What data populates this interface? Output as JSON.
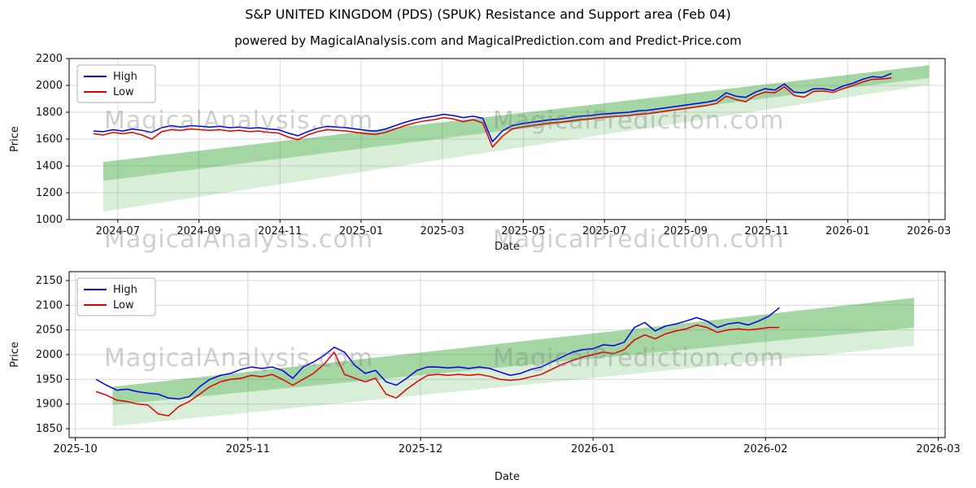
{
  "header": {
    "title": "S&P UNITED KINGDOM (PDS) (SPUK) Resistance and Support area (Feb 04)",
    "subtitle": "powered by MagicalAnalysis.com and MagicalPrediction.com and Predict-Price.com"
  },
  "watermarks": {
    "left": "MagicalAnalysis.com",
    "right": "MagicalPrediction.com"
  },
  "colors": {
    "high": "#0000dd",
    "low": "#dd0000",
    "band": "#2ca02c",
    "grid": "#d9d9d9",
    "axis": "#000000"
  },
  "chart_data": [
    {
      "type": "line",
      "title": "",
      "xlabel": "Date",
      "ylabel": "Price",
      "xlim": [
        2024.4,
        2026.2
      ],
      "ylim": [
        1000,
        2200
      ],
      "grid": true,
      "legend_position": "upper-left",
      "xticks": [
        {
          "v": 2024.5,
          "label": "2024-07"
        },
        {
          "v": 2024.6667,
          "label": "2024-09"
        },
        {
          "v": 2024.8333,
          "label": "2024-11"
        },
        {
          "v": 2025.0,
          "label": "2025-01"
        },
        {
          "v": 2025.1667,
          "label": "2025-03"
        },
        {
          "v": 2025.3333,
          "label": "2025-05"
        },
        {
          "v": 2025.5,
          "label": "2025-07"
        },
        {
          "v": 2025.6667,
          "label": "2025-09"
        },
        {
          "v": 2025.8333,
          "label": "2025-11"
        },
        {
          "v": 2026.0,
          "label": "2026-01"
        },
        {
          "v": 2026.1667,
          "label": "2026-03"
        }
      ],
      "yticks": [
        1000,
        1200,
        1400,
        1600,
        1800,
        2000,
        2200
      ],
      "x": [
        2024.45,
        2024.47,
        2024.49,
        2024.51,
        2024.53,
        2024.55,
        2024.57,
        2024.59,
        2024.61,
        2024.63,
        2024.65,
        2024.67,
        2024.69,
        2024.71,
        2024.73,
        2024.75,
        2024.77,
        2024.79,
        2024.81,
        2024.83,
        2024.85,
        2024.87,
        2024.89,
        2024.91,
        2024.93,
        2024.95,
        2024.97,
        2024.99,
        2025.01,
        2025.03,
        2025.05,
        2025.07,
        2025.09,
        2025.11,
        2025.13,
        2025.15,
        2025.17,
        2025.19,
        2025.21,
        2025.23,
        2025.25,
        2025.27,
        2025.29,
        2025.31,
        2025.33,
        2025.35,
        2025.37,
        2025.39,
        2025.41,
        2025.43,
        2025.45,
        2025.47,
        2025.49,
        2025.51,
        2025.53,
        2025.55,
        2025.57,
        2025.59,
        2025.61,
        2025.63,
        2025.65,
        2025.67,
        2025.69,
        2025.71,
        2025.73,
        2025.75,
        2025.77,
        2025.79,
        2025.81,
        2025.83,
        2025.85,
        2025.87,
        2025.89,
        2025.91,
        2025.93,
        2025.95,
        2025.97,
        2025.99,
        2026.01,
        2026.03,
        2026.05,
        2026.07,
        2026.09
      ],
      "series": [
        {
          "name": "High",
          "color": "#0000dd",
          "values": [
            1660,
            1655,
            1670,
            1660,
            1675,
            1665,
            1650,
            1685,
            1700,
            1690,
            1700,
            1695,
            1690,
            1695,
            1685,
            1690,
            1680,
            1685,
            1675,
            1670,
            1645,
            1625,
            1655,
            1680,
            1695,
            1690,
            1685,
            1675,
            1665,
            1660,
            1675,
            1700,
            1725,
            1745,
            1760,
            1770,
            1785,
            1775,
            1760,
            1770,
            1755,
            1580,
            1660,
            1700,
            1715,
            1725,
            1735,
            1745,
            1750,
            1760,
            1770,
            1775,
            1785,
            1790,
            1795,
            1800,
            1810,
            1815,
            1825,
            1835,
            1845,
            1855,
            1865,
            1875,
            1890,
            1945,
            1920,
            1910,
            1950,
            1975,
            1965,
            2010,
            1950,
            1945,
            1975,
            1975,
            1962,
            1995,
            2015,
            2045,
            2065,
            2060,
            2090
          ]
        },
        {
          "name": "Low",
          "color": "#dd0000",
          "values": [
            1640,
            1630,
            1650,
            1640,
            1650,
            1630,
            1600,
            1655,
            1670,
            1665,
            1675,
            1670,
            1665,
            1670,
            1660,
            1665,
            1655,
            1660,
            1650,
            1645,
            1615,
            1595,
            1630,
            1655,
            1670,
            1665,
            1660,
            1650,
            1640,
            1635,
            1650,
            1675,
            1700,
            1720,
            1735,
            1745,
            1760,
            1750,
            1730,
            1745,
            1720,
            1540,
            1620,
            1675,
            1690,
            1700,
            1710,
            1720,
            1725,
            1735,
            1745,
            1750,
            1760,
            1765,
            1770,
            1775,
            1785,
            1790,
            1800,
            1810,
            1820,
            1830,
            1840,
            1850,
            1865,
            1920,
            1895,
            1878,
            1925,
            1950,
            1945,
            1990,
            1925,
            1912,
            1955,
            1958,
            1948,
            1975,
            1998,
            2025,
            2045,
            2048,
            2055
          ]
        }
      ],
      "bands": [
        {
          "name": "support-area-outer",
          "opacity": 0.18,
          "points": [
            [
              2024.47,
              1060
            ],
            [
              2026.167,
              2005
            ],
            [
              2026.167,
              2150
            ],
            [
              2024.47,
              1430
            ]
          ]
        },
        {
          "name": "resistance-area-inner",
          "opacity": 0.3,
          "points": [
            [
              2024.47,
              1290
            ],
            [
              2026.167,
              2055
            ],
            [
              2026.167,
              2150
            ],
            [
              2024.47,
              1430
            ]
          ]
        }
      ]
    },
    {
      "type": "line",
      "title": "",
      "xlabel": "Date",
      "ylabel": "Price",
      "xlim": [
        2025.747,
        2026.17
      ],
      "ylim": [
        1832,
        2168
      ],
      "grid": true,
      "legend_position": "upper-left",
      "xticks": [
        {
          "v": 2025.75,
          "label": "2025-10"
        },
        {
          "v": 2025.8333,
          "label": "2025-11"
        },
        {
          "v": 2025.9167,
          "label": "2025-12"
        },
        {
          "v": 2026.0,
          "label": "2026-01"
        },
        {
          "v": 2026.0833,
          "label": "2026-02"
        },
        {
          "v": 2026.1667,
          "label": "2026-03"
        }
      ],
      "yticks": [
        1850,
        1900,
        1950,
        2000,
        2050,
        2100,
        2150
      ],
      "x": [
        2025.76,
        2025.765,
        2025.77,
        2025.775,
        2025.78,
        2025.785,
        2025.79,
        2025.795,
        2025.8,
        2025.805,
        2025.81,
        2025.815,
        2025.82,
        2025.825,
        2025.83,
        2025.835,
        2025.84,
        2025.845,
        2025.85,
        2025.855,
        2025.86,
        2025.865,
        2025.87,
        2025.875,
        2025.88,
        2025.885,
        2025.89,
        2025.895,
        2025.9,
        2025.905,
        2025.91,
        2025.915,
        2025.92,
        2025.925,
        2025.93,
        2025.935,
        2025.94,
        2025.945,
        2025.95,
        2025.955,
        2025.96,
        2025.965,
        2025.97,
        2025.975,
        2025.98,
        2025.985,
        2025.99,
        2025.995,
        2026.0,
        2026.005,
        2026.01,
        2026.015,
        2026.02,
        2026.025,
        2026.03,
        2026.035,
        2026.04,
        2026.045,
        2026.05,
        2026.055,
        2026.06,
        2026.065,
        2026.07,
        2026.075,
        2026.08,
        2026.085,
        2026.09
      ],
      "series": [
        {
          "name": "High",
          "color": "#0000dd",
          "values": [
            1950,
            1938,
            1928,
            1930,
            1925,
            1922,
            1920,
            1912,
            1910,
            1915,
            1935,
            1950,
            1958,
            1962,
            1970,
            1975,
            1972,
            1975,
            1968,
            1952,
            1975,
            1985,
            1998,
            2015,
            2005,
            1978,
            1962,
            1968,
            1945,
            1938,
            1952,
            1968,
            1975,
            1975,
            1973,
            1975,
            1972,
            1975,
            1972,
            1965,
            1958,
            1962,
            1970,
            1975,
            1985,
            1995,
            2005,
            2010,
            2012,
            2020,
            2018,
            2025,
            2055,
            2065,
            2048,
            2058,
            2062,
            2068,
            2075,
            2068,
            2055,
            2062,
            2065,
            2060,
            2068,
            2078,
            2095
          ]
        },
        {
          "name": "Low",
          "color": "#dd0000",
          "values": [
            1925,
            1918,
            1908,
            1905,
            1900,
            1898,
            1880,
            1876,
            1895,
            1905,
            1920,
            1935,
            1945,
            1950,
            1952,
            1958,
            1955,
            1960,
            1950,
            1938,
            1950,
            1962,
            1980,
            2005,
            1960,
            1952,
            1945,
            1952,
            1920,
            1912,
            1930,
            1945,
            1958,
            1960,
            1958,
            1960,
            1958,
            1960,
            1956,
            1950,
            1948,
            1950,
            1955,
            1960,
            1970,
            1980,
            1988,
            1995,
            2000,
            2005,
            2002,
            2010,
            2030,
            2040,
            2032,
            2042,
            2048,
            2052,
            2060,
            2055,
            2045,
            2050,
            2052,
            2050,
            2052,
            2055,
            2055
          ]
        }
      ],
      "bands": [
        {
          "name": "support-area-outer",
          "opacity": 0.18,
          "points": [
            [
              2025.768,
              1855
            ],
            [
              2026.155,
              2018
            ],
            [
              2026.155,
              2115
            ],
            [
              2025.768,
              1935
            ]
          ]
        },
        {
          "name": "resistance-area-inner",
          "opacity": 0.3,
          "points": [
            [
              2025.768,
              1898
            ],
            [
              2026.155,
              2055
            ],
            [
              2026.155,
              2115
            ],
            [
              2025.768,
              1935
            ]
          ]
        }
      ]
    }
  ]
}
